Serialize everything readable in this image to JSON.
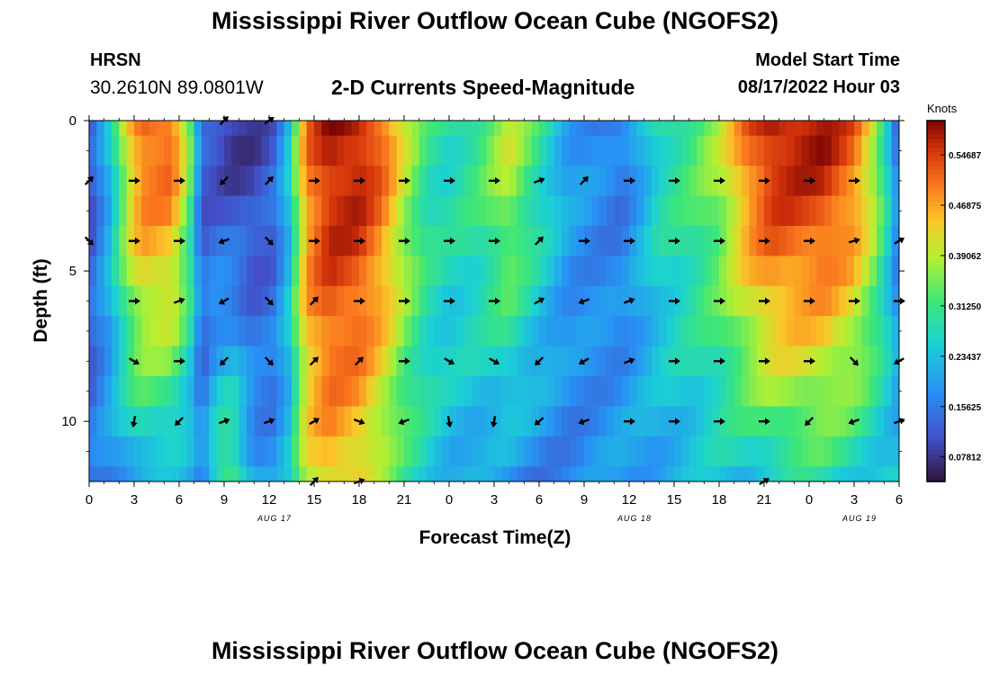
{
  "page": {
    "title": "Mississippi River Outflow Ocean Cube (NGOFS2)",
    "title_repeat": "Mississippi River Outflow Ocean Cube (NGOFS2)",
    "station_code": "HRSN",
    "station_coords": "30.2610N  89.0801W",
    "subtitle": "2-D Currents Speed-Magnitude",
    "model_start_label": "Model Start Time",
    "model_start_value": "08/17/2022 Hour 03"
  },
  "chart_data": {
    "type": "heatmap",
    "title": "2-D Currents Speed-Magnitude",
    "xlabel": "Forecast Time(Z)",
    "ylabel": "Depth (ft)",
    "units": "Knots",
    "x_tick_labels": [
      "0",
      "3",
      "6",
      "9",
      "12",
      "15",
      "18",
      "21",
      "0",
      "3",
      "6",
      "9",
      "12",
      "15",
      "18",
      "21",
      "0",
      "3",
      "6"
    ],
    "date_labels": [
      {
        "label": "AUG 17",
        "hour": 12
      },
      {
        "label": "AUG 18",
        "hour": 36
      },
      {
        "label": "AUG 19",
        "hour": 51
      }
    ],
    "y_ticks": [
      0,
      5,
      10
    ],
    "xlim": [
      0,
      54
    ],
    "ylim": [
      0,
      12
    ],
    "depths_ft": [
      0,
      1,
      2,
      3,
      4,
      5,
      6,
      7,
      8,
      9,
      10,
      11,
      12
    ],
    "colorbar_ticks": [
      "0.54687",
      "0.46875",
      "0.39062",
      "0.31250",
      "0.23437",
      "0.15625",
      "0.07812"
    ],
    "colorbar_range": [
      0.04,
      0.6
    ],
    "speed_profile": {
      "hours": [
        0,
        1.5,
        2.5,
        3.5,
        5.5,
        6.7,
        7.5,
        8.5,
        9.5,
        11,
        12.2,
        13.2,
        14.5,
        16,
        18,
        19.5,
        21,
        22.5,
        24,
        26,
        28,
        30,
        32,
        34,
        35.5,
        36.5,
        38,
        40,
        42,
        44,
        45.5,
        47,
        49,
        51,
        52.5,
        53.5,
        54
      ],
      "top": [
        0.1,
        0.25,
        0.42,
        0.52,
        0.52,
        0.35,
        0.12,
        0.1,
        0.08,
        0.09,
        0.12,
        0.22,
        0.5,
        0.58,
        0.58,
        0.52,
        0.4,
        0.3,
        0.28,
        0.32,
        0.4,
        0.3,
        0.2,
        0.17,
        0.15,
        0.2,
        0.28,
        0.32,
        0.38,
        0.52,
        0.58,
        0.58,
        0.58,
        0.52,
        0.38,
        0.22,
        0.12
      ],
      "bottom": [
        0.15,
        0.18,
        0.2,
        0.22,
        0.22,
        0.2,
        0.16,
        0.3,
        0.34,
        0.2,
        0.18,
        0.22,
        0.4,
        0.45,
        0.42,
        0.36,
        0.3,
        0.26,
        0.22,
        0.2,
        0.18,
        0.16,
        0.16,
        0.18,
        0.2,
        0.2,
        0.2,
        0.22,
        0.24,
        0.24,
        0.26,
        0.28,
        0.28,
        0.26,
        0.24,
        0.24,
        0.24
      ]
    },
    "arrow_rows_ft": [
      0,
      2,
      4,
      6,
      8,
      10,
      12
    ],
    "arrow_cols_hours": [
      0,
      3,
      6,
      9,
      12,
      15,
      18,
      21,
      24,
      27,
      30,
      33,
      36,
      39,
      42,
      45,
      48,
      51,
      54
    ],
    "arrow_angles_deg": [
      [
        45,
        45,
        45,
        -45,
        -35,
        0,
        0,
        0,
        0,
        0,
        0,
        0,
        0,
        0,
        0,
        0,
        0,
        0,
        0
      ],
      [
        -45,
        0,
        0,
        135,
        -45,
        0,
        0,
        0,
        0,
        0,
        -20,
        -45,
        0,
        0,
        0,
        0,
        0,
        0,
        -20
      ],
      [
        45,
        0,
        0,
        160,
        45,
        0,
        0,
        0,
        0,
        0,
        -45,
        0,
        0,
        0,
        0,
        0,
        0,
        -15,
        -30
      ],
      [
        0,
        0,
        -20,
        150,
        45,
        -45,
        0,
        0,
        0,
        0,
        -30,
        160,
        -20,
        0,
        0,
        0,
        0,
        0,
        0
      ],
      [
        0,
        30,
        0,
        135,
        45,
        -45,
        -45,
        0,
        30,
        30,
        135,
        150,
        -20,
        0,
        0,
        0,
        0,
        45,
        150
      ],
      [
        0,
        100,
        135,
        -20,
        -20,
        -30,
        20,
        160,
        80,
        100,
        140,
        160,
        0,
        0,
        0,
        0,
        135,
        160,
        -20
      ],
      [
        0,
        0,
        0,
        0,
        0,
        -45,
        -20,
        0,
        0,
        0,
        0,
        0,
        0,
        0,
        0,
        -30,
        0,
        0,
        0
      ]
    ],
    "arrow_present": [
      [
        0,
        0,
        0,
        1,
        1,
        0,
        0,
        0,
        0,
        0,
        0,
        0,
        0,
        0,
        0,
        0,
        0,
        0,
        0
      ],
      [
        1,
        1,
        1,
        1,
        1,
        1,
        1,
        1,
        1,
        1,
        1,
        1,
        1,
        1,
        1,
        1,
        1,
        1,
        0
      ],
      [
        1,
        1,
        1,
        1,
        1,
        1,
        1,
        1,
        1,
        1,
        1,
        1,
        1,
        1,
        1,
        1,
        1,
        1,
        1
      ],
      [
        0,
        1,
        1,
        1,
        1,
        1,
        1,
        1,
        1,
        1,
        1,
        1,
        1,
        1,
        1,
        1,
        1,
        1,
        1
      ],
      [
        0,
        1,
        1,
        1,
        1,
        1,
        1,
        1,
        1,
        1,
        1,
        1,
        1,
        1,
        1,
        1,
        1,
        1,
        1
      ],
      [
        0,
        1,
        1,
        1,
        1,
        1,
        1,
        1,
        1,
        1,
        1,
        1,
        1,
        1,
        1,
        1,
        1,
        1,
        1
      ],
      [
        0,
        0,
        0,
        0,
        0,
        1,
        1,
        0,
        0,
        0,
        0,
        0,
        0,
        0,
        0,
        1,
        0,
        0,
        0
      ]
    ]
  }
}
